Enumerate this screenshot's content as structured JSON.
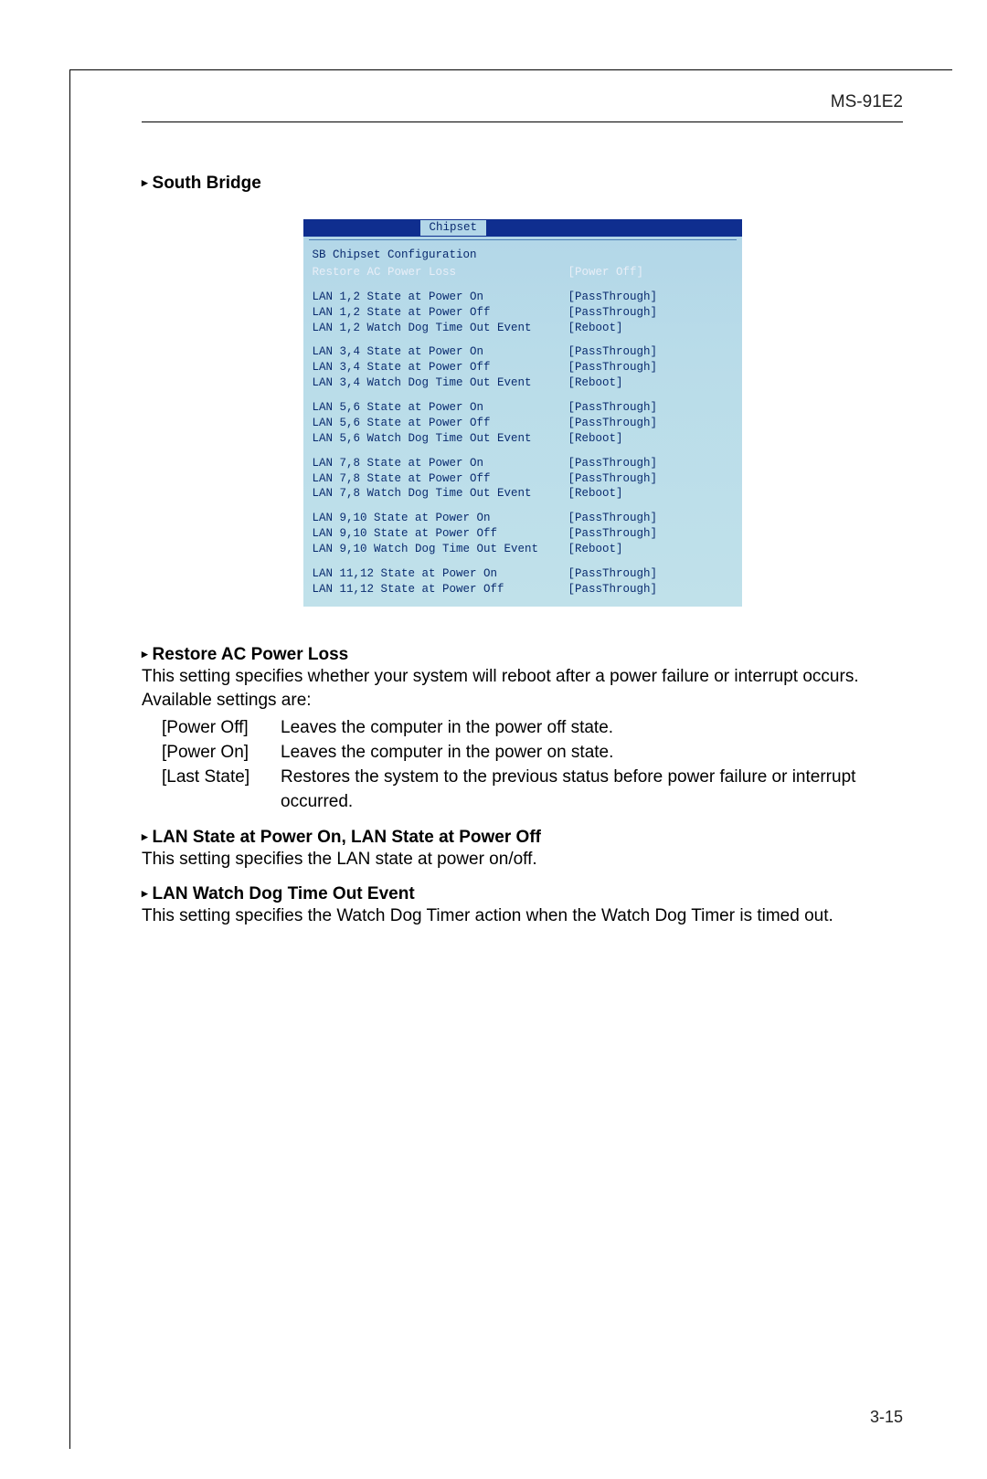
{
  "model": "MS-91E2",
  "page_number": "3-15",
  "section_title": "South Bridge",
  "bios": {
    "tab": "Chipset",
    "header": "SB Chipset Configuration",
    "selected": {
      "label": "Restore AC Power Loss",
      "value": "[Power Off]"
    },
    "groups": [
      [
        {
          "label": "LAN 1,2 State at Power On",
          "value": "[PassThrough]"
        },
        {
          "label": "LAN 1,2 State at Power Off",
          "value": "[PassThrough]"
        },
        {
          "label": "LAN 1,2 Watch Dog Time Out Event",
          "value": "[Reboot]"
        }
      ],
      [
        {
          "label": "LAN 3,4 State at Power On",
          "value": "[PassThrough]"
        },
        {
          "label": "LAN 3,4 State at Power Off",
          "value": "[PassThrough]"
        },
        {
          "label": "LAN 3,4 Watch Dog Time Out Event",
          "value": "[Reboot]"
        }
      ],
      [
        {
          "label": "LAN 5,6 State at Power On",
          "value": "[PassThrough]"
        },
        {
          "label": "LAN 5,6 State at Power Off",
          "value": "[PassThrough]"
        },
        {
          "label": "LAN 5,6 Watch Dog Time Out Event",
          "value": "[Reboot]"
        }
      ],
      [
        {
          "label": "LAN 7,8 State at Power On",
          "value": "[PassThrough]"
        },
        {
          "label": "LAN 7,8 State at Power Off",
          "value": "[PassThrough]"
        },
        {
          "label": "LAN 7,8 Watch Dog Time Out Event",
          "value": "[Reboot]"
        }
      ],
      [
        {
          "label": "LAN 9,10 State at Power On",
          "value": "[PassThrough]"
        },
        {
          "label": "LAN 9,10 State at Power Off",
          "value": "[PassThrough]"
        },
        {
          "label": "LAN 9,10 Watch Dog Time Out Event",
          "value": "[Reboot]"
        }
      ],
      [
        {
          "label": "LAN 11,12 State at Power On",
          "value": "[PassThrough]"
        },
        {
          "label": "LAN 11,12 State at Power Off",
          "value": "[PassThrough]"
        }
      ]
    ]
  },
  "subs": {
    "restore": {
      "title": "Restore AC Power Loss",
      "desc": "This setting specifies whether your system will reboot after a power failure or interrupt occurs. Available settings are:",
      "options": [
        {
          "key": "[Power Off]",
          "desc": "Leaves the computer in the power off state."
        },
        {
          "key": "[Power On]",
          "desc": "Leaves the computer in the power on state."
        },
        {
          "key": "[Last State]",
          "desc": "Restores the system to the previous status before power failure or interrupt occurred."
        }
      ]
    },
    "lanstate": {
      "title": "LAN State at Power On, LAN State at Power Off",
      "desc": "This setting specifies the LAN state at power on/off."
    },
    "watchdog": {
      "title": "LAN Watch Dog Time Out Event",
      "desc": "This setting specifies the Watch Dog Timer action when the Watch Dog Timer is timed out."
    }
  }
}
